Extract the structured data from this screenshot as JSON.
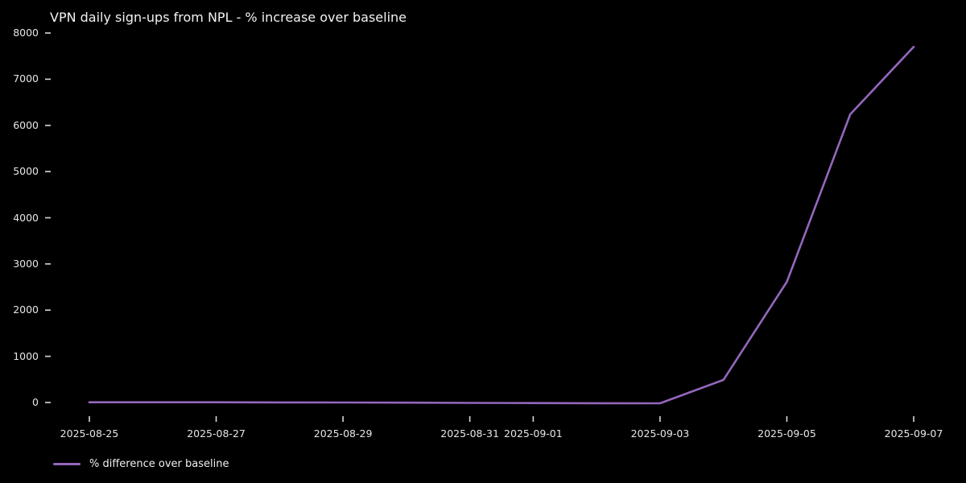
{
  "title": "VPN daily sign-ups from NPL - % increase over baseline",
  "legend": {
    "label": "% difference over baseline"
  },
  "colors": {
    "background": "#000000",
    "line": "#9467bd",
    "title_text": "#f2f2f2",
    "tick_text": "#e6e6e6",
    "tick_mark": "#d9d9d9"
  },
  "chart_data": {
    "type": "line",
    "title": "VPN daily sign-ups from NPL - % increase over baseline",
    "xlabel": "",
    "ylabel": "",
    "x": [
      "2025-08-25",
      "2025-08-26",
      "2025-08-27",
      "2025-08-28",
      "2025-08-29",
      "2025-08-30",
      "2025-08-31",
      "2025-09-01",
      "2025-09-02",
      "2025-09-03",
      "2025-09-04",
      "2025-09-05",
      "2025-09-06",
      "2025-09-07"
    ],
    "series": [
      {
        "name": "% difference over baseline",
        "values": [
          5,
          5,
          5,
          2,
          0,
          -3,
          -8,
          -12,
          -15,
          -18,
          490,
          2615,
          6240,
          7700
        ]
      }
    ],
    "ylim": [
      0,
      8000
    ],
    "y_ticks": [
      0,
      1000,
      2000,
      3000,
      4000,
      5000,
      6000,
      7000,
      8000
    ],
    "x_ticks": [
      {
        "label": "2025-08-25",
        "index": 0
      },
      {
        "label": "2025-08-27",
        "index": 2
      },
      {
        "label": "2025-08-29",
        "index": 4
      },
      {
        "label": "2025-08-31",
        "index": 6
      },
      {
        "label": "2025-09-01",
        "index": 7
      },
      {
        "label": "2025-09-03",
        "index": 9
      },
      {
        "label": "2025-09-05",
        "index": 11
      },
      {
        "label": "2025-09-07",
        "index": 13
      }
    ],
    "grid": false,
    "legend_position": "lower-left"
  }
}
